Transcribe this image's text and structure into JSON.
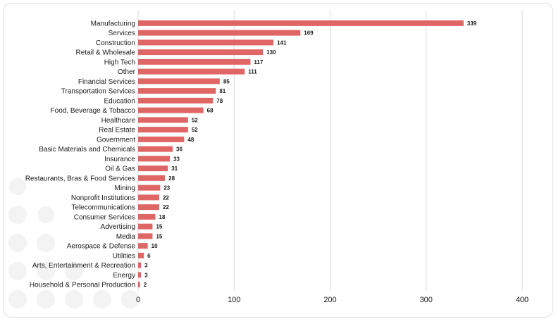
{
  "chart_data": {
    "type": "bar",
    "orientation": "horizontal",
    "title": "",
    "xlabel": "",
    "ylabel": "",
    "categories": [
      "Manufacturing",
      "Services",
      "Construction",
      "Retail & Wholesale",
      "High Tech",
      "Other",
      "Financial Services",
      "Transportation Services",
      "Education",
      "Food, Beverage & Tobacco",
      "Healthcare",
      "Real Estate",
      "Government",
      "Basic Materials and Chemicals",
      "Insurance",
      "Oil & Gas",
      "Restaurants, Bras & Food Services",
      "Mining",
      "Nonprofit Institutions",
      "Telecommunications",
      "Consumer Services",
      "Advertising",
      "Media",
      "Aerospace & Defense",
      "Utilities",
      "Arts, Entertainment & Recreation",
      "Energy",
      "Household & Personal Production"
    ],
    "values": [
      339,
      169,
      141,
      130,
      117,
      111,
      85,
      81,
      78,
      68,
      52,
      52,
      48,
      36,
      33,
      31,
      28,
      23,
      22,
      22,
      18,
      15,
      15,
      10,
      6,
      3,
      3,
      2
    ],
    "xlim": [
      0,
      400
    ],
    "xticks": [
      0,
      100,
      200,
      300,
      400
    ],
    "grid": "vertical",
    "legend": "none",
    "bar_color": "#e06666"
  }
}
